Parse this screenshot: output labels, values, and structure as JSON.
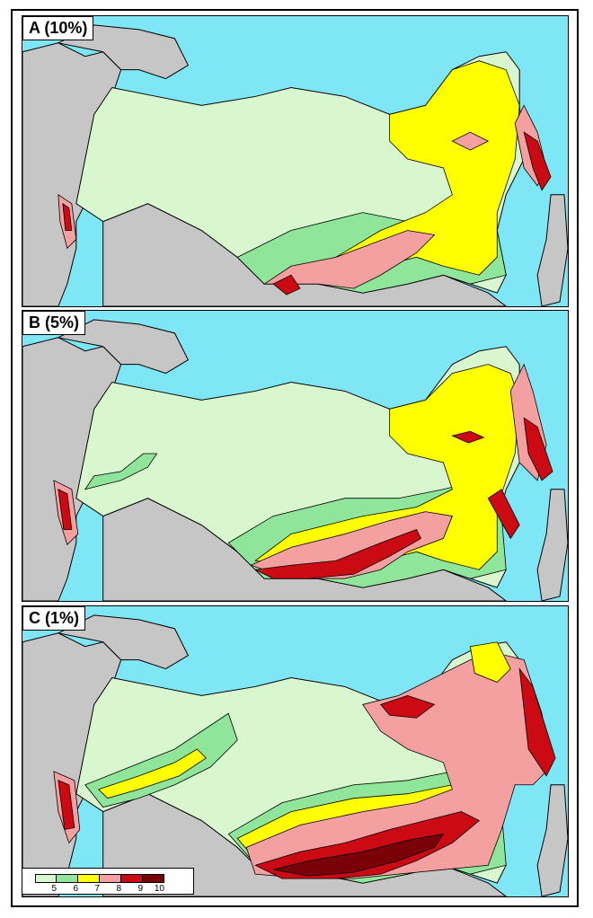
{
  "panels": [
    {
      "label": "A (10%)",
      "zones": [
        "very-low",
        "low",
        "moderate",
        "moderate",
        "high",
        "very-high"
      ]
    },
    {
      "label": "B  (5%)",
      "zones": [
        "very-low",
        "low",
        "moderate",
        "moderate",
        "high",
        "very-high",
        "extreme"
      ]
    },
    {
      "label": "C  (1%)",
      "zones": [
        "very-low",
        "low",
        "moderate",
        "moderate",
        "high",
        "very-high",
        "extreme",
        "extreme"
      ]
    }
  ],
  "legend": {
    "items": [
      {
        "value": "5",
        "color": "#d9f7cf"
      },
      {
        "value": "6",
        "color": "#8fe69a"
      },
      {
        "value": "7",
        "color": "#ffff00"
      },
      {
        "value": "8",
        "color": "#f5a0a0"
      },
      {
        "value": "9",
        "color": "#cc0a14"
      },
      {
        "value": "10",
        "color": "#7a0008"
      }
    ]
  },
  "colors": {
    "sea": "#7fe6f5",
    "land_outside": "#c6c6c6",
    "border": "#000000"
  }
}
